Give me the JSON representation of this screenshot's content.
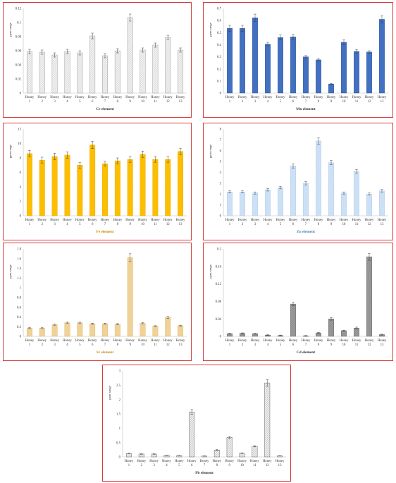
{
  "chart_data": [
    {
      "id": "cr",
      "type": "bar",
      "categories": [
        "Honey 1",
        "Honey 2",
        "Honey 3",
        "Honey 4",
        "Honey 5",
        "Honey 6",
        "Honey 7",
        "Honey 8",
        "Honey 9",
        "Honey 10",
        "Honey 11",
        "Honey 12",
        "Honey 13"
      ],
      "values": [
        0.059,
        0.058,
        0.054,
        0.059,
        0.057,
        0.081,
        0.053,
        0.06,
        0.107,
        0.061,
        0.068,
        0.079,
        0.061
      ],
      "errors": [
        0.003,
        0.003,
        0.003,
        0.003,
        0.003,
        0.004,
        0.003,
        0.003,
        0.005,
        0.003,
        0.003,
        0.003,
        0.003
      ],
      "ylim": [
        0,
        0.12
      ],
      "yticks": [
        0,
        0.02,
        0.04,
        0.06,
        0.08,
        0.1,
        0.12
      ],
      "xlabel": "Cr element",
      "ylabel": "ppm range",
      "bar_color": "#f0f0f0",
      "bar_stroke": "#8c8c8c",
      "xlabel_color": "#333333"
    },
    {
      "id": "mn",
      "type": "bar",
      "categories": [
        "Honey 1",
        "Honey 2",
        "Honey 3",
        "Honey 4",
        "Honey 5",
        "Honey 6",
        "Honey 7",
        "Honey 8",
        "Honey 9",
        "Honey 10",
        "Honey 11",
        "Honey 12",
        "Honey 13"
      ],
      "values": [
        0.535,
        0.535,
        0.623,
        0.405,
        0.46,
        0.465,
        0.3,
        0.275,
        0.075,
        0.42,
        0.345,
        0.34,
        0.61
      ],
      "errors": [
        0.025,
        0.025,
        0.03,
        0.015,
        0.02,
        0.02,
        0.01,
        0.01,
        0.005,
        0.02,
        0.015,
        0.01,
        0.03
      ],
      "ylim": [
        0,
        0.7
      ],
      "yticks": [
        0,
        0.1,
        0.2,
        0.3,
        0.4,
        0.5,
        0.6,
        0.7
      ],
      "xlabel": "Mn element",
      "ylabel": "ppm range",
      "bar_color": "#4472c4",
      "bar_stroke": "#2f5597",
      "xlabel_color": "#333333"
    },
    {
      "id": "fe",
      "type": "bar",
      "categories": [
        "Honey 1",
        "Honey 2",
        "Honey 3",
        "Honey 4",
        "Honey 5",
        "Honey 6",
        "Honey 7",
        "Honey 8",
        "Honey 9",
        "Honey 10",
        "Honey 11",
        "Honey 12",
        "Honey 13"
      ],
      "values": [
        8.6,
        7.7,
        8.2,
        8.4,
        7.0,
        9.8,
        7.2,
        7.6,
        7.8,
        8.5,
        7.8,
        7.8,
        8.9
      ],
      "errors": [
        0.45,
        0.4,
        0.45,
        0.45,
        0.4,
        0.5,
        0.35,
        0.4,
        0.4,
        0.45,
        0.4,
        0.4,
        0.45
      ],
      "ylim": [
        0,
        12
      ],
      "yticks": [
        0,
        2,
        4,
        6,
        8,
        10,
        12
      ],
      "xlabel": "Fe element",
      "ylabel": "ppm range",
      "bar_color": "#ffc000",
      "bar_stroke": "#e3a800",
      "xlabel_color": "#c78800"
    },
    {
      "id": "zn",
      "type": "bar",
      "categories": [
        "Honey 1",
        "Honey 2",
        "Honey 3",
        "Honey 4",
        "Honey 5",
        "Honey 6",
        "Honey 7",
        "Honey 8",
        "Honey 9",
        "Honey 10",
        "Honey 11",
        "Honey 12",
        "Honey 13"
      ],
      "values": [
        2.2,
        2.2,
        2.1,
        2.4,
        2.6,
        4.6,
        3.0,
        6.9,
        4.9,
        2.1,
        4.1,
        2.0,
        2.3
      ],
      "errors": [
        0.1,
        0.1,
        0.1,
        0.12,
        0.12,
        0.2,
        0.15,
        0.3,
        0.2,
        0.1,
        0.18,
        0.1,
        0.12
      ],
      "ylim": [
        0,
        8
      ],
      "yticks": [
        0,
        1,
        2,
        3,
        4,
        5,
        6,
        7,
        8
      ],
      "xlabel": "Zn element",
      "ylabel": "ppm range",
      "bar_color": "#cfe2f7",
      "bar_stroke": "#a9c8ea",
      "xlabel_color": "#4a7fc1"
    },
    {
      "id": "sr",
      "type": "bar",
      "categories": [
        "Honey 1",
        "Honey 2",
        "Honey 3",
        "Honey 4",
        "Honey 5",
        "Honey 6",
        "Honey 7",
        "Honey 8",
        "Honey 9",
        "Honey 10",
        "Honey 11",
        "Honey 12",
        "Honey 13"
      ],
      "values": [
        0.17,
        0.17,
        0.24,
        0.28,
        0.28,
        0.26,
        0.26,
        0.25,
        1.62,
        0.27,
        0.21,
        0.39,
        0.22
      ],
      "errors": [
        0.01,
        0.01,
        0.012,
        0.012,
        0.012,
        0.012,
        0.012,
        0.012,
        0.08,
        0.012,
        0.01,
        0.02,
        0.01
      ],
      "ylim": [
        0,
        1.8
      ],
      "yticks": [
        0,
        0.2,
        0.4,
        0.6,
        0.8,
        1,
        1.2,
        1.4,
        1.6,
        1.8
      ],
      "xlabel": "Sr element",
      "ylabel": "ppm range",
      "bar_color": "#f2d49b",
      "bar_stroke": "#d9b36a",
      "xlabel_color": "#c58a1a"
    },
    {
      "id": "cd",
      "type": "bar",
      "categories": [
        "Honey 1",
        "Honey 2",
        "Honey 3",
        "Honey 4",
        "Honey 5",
        "Honey 6",
        "Honey 7",
        "Honey 8",
        "Honey 9",
        "Honey 10",
        "Honey 11",
        "Honey 12",
        "Honey 13"
      ],
      "values": [
        0.006,
        0.007,
        0.006,
        0.003,
        0.002,
        0.074,
        0.001,
        0.008,
        0.04,
        0.013,
        0.019,
        0.182,
        0.004
      ],
      "errors": [
        0.001,
        0.001,
        0.001,
        0.001,
        0.001,
        0.004,
        0.001,
        0.001,
        0.003,
        0.001,
        0.002,
        0.008,
        0.001
      ],
      "ylim": [
        0,
        0.2
      ],
      "yticks": [
        0,
        0.04,
        0.08,
        0.12,
        0.16,
        0.2
      ],
      "xlabel": "Cd element",
      "ylabel": "ppm range",
      "bar_color": "#9a9a9a",
      "bar_stroke": "#5a5a5a",
      "xlabel_color": "#333333"
    },
    {
      "id": "pb",
      "type": "bar",
      "categories": [
        "Honey 1",
        "Honey 2",
        "Honey 3",
        "Honey 4",
        "Honey 5",
        "Honey 6",
        "Honey 7",
        "Honey 8",
        "Honey 9",
        "Honey 10",
        "Honey 11",
        "Honey 12",
        "Honey 13"
      ],
      "values": [
        0.12,
        0.1,
        0.1,
        0.06,
        0.05,
        1.57,
        0.03,
        0.24,
        0.68,
        0.13,
        0.37,
        2.58,
        0.04
      ],
      "errors": [
        0.01,
        0.01,
        0.01,
        0.005,
        0.005,
        0.08,
        0.005,
        0.015,
        0.03,
        0.01,
        0.02,
        0.12,
        0.005
      ],
      "ylim": [
        0,
        3
      ],
      "yticks": [
        0,
        0.5,
        1,
        1.5,
        2,
        2.5,
        3
      ],
      "xlabel": "Pb element",
      "ylabel": "ppm range",
      "bar_color": "#ececec",
      "bar_stroke": "#4a4a4a",
      "xlabel_color": "#333333"
    }
  ]
}
